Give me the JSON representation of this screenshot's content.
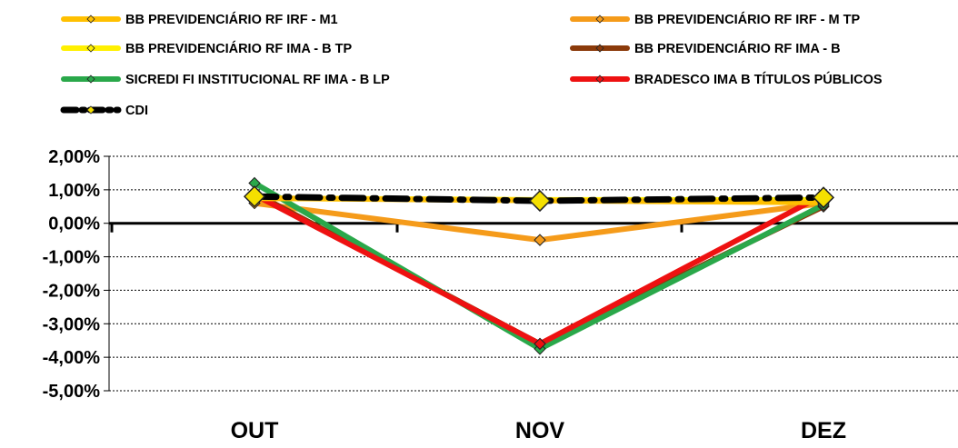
{
  "chart_data": {
    "type": "line",
    "categories": [
      "OUT",
      "NOV",
      "DEZ"
    ],
    "yticks": [
      "2,00%",
      "1,00%",
      "0,00%",
      "-1,00%",
      "-2,00%",
      "-3,00%",
      "-4,00%",
      "-5,00%"
    ],
    "ylim": [
      -5,
      2
    ],
    "yunit": "%",
    "grid": true,
    "legend_position": "top",
    "series": [
      {
        "name": "BB PREVIDENCIÁRIO RF IRF - M1",
        "color": "#FFC000",
        "values": [
          0.75,
          0.68,
          0.62
        ],
        "dashed": false
      },
      {
        "name": "BB PREVIDENCIÁRIO RF IRF - M TP",
        "color": "#F59B1A",
        "values": [
          0.6,
          -0.5,
          0.6
        ],
        "dashed": false
      },
      {
        "name": "BB PREVIDENCIÁRIO RF IMA - B TP",
        "color": "#FFF000",
        "values": [
          0.75,
          0.7,
          0.7
        ],
        "dashed": false
      },
      {
        "name": "BB PREVIDENCIÁRIO RF IMA - B",
        "color": "#8B3A0A",
        "values": [
          0.9,
          -3.6,
          0.5
        ],
        "dashed": false
      },
      {
        "name": "SICREDI FI INSTITUCIONAL RF IMA - B LP",
        "color": "#2AA84A",
        "values": [
          1.2,
          -3.75,
          0.55
        ],
        "dashed": false
      },
      {
        "name": "BRADESCO IMA B TÍTULOS PÚBLICOS",
        "color": "#EE1111",
        "values": [
          0.85,
          -3.6,
          0.85
        ],
        "dashed": false
      },
      {
        "name": "CDI",
        "color": "#000000",
        "values": [
          0.8,
          0.67,
          0.77
        ],
        "dashed": true
      }
    ]
  }
}
